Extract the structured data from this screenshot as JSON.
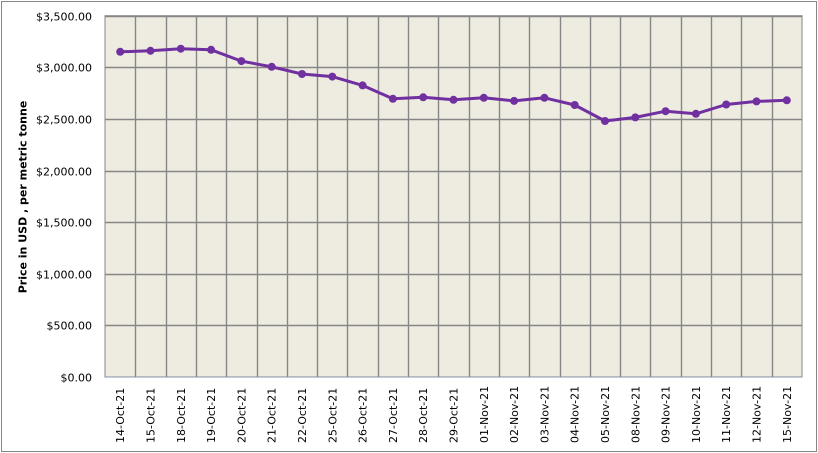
{
  "chart_data": {
    "type": "line",
    "title": "",
    "xlabel": "",
    "ylabel": "Price in USD , per metric tonne",
    "ylim": [
      0,
      3500
    ],
    "y_ticks": [
      0,
      500,
      1000,
      1500,
      2000,
      2500,
      3000,
      3500
    ],
    "y_tick_labels": [
      "$0.00",
      "$500.00",
      "$1,000.00",
      "$1,500.00",
      "$2,000.00",
      "$2,500.00",
      "$3,000.00",
      "$3,500.00"
    ],
    "grid": true,
    "legend": null,
    "categories": [
      "14-Oct-21",
      "15-Oct-21",
      "18-Oct-21",
      "19-Oct-21",
      "20-Oct-21",
      "21-Oct-21",
      "22-Oct-21",
      "25-Oct-21",
      "26-Oct-21",
      "27-Oct-21",
      "28-Oct-21",
      "29-Oct-21",
      "01-Nov-21",
      "02-Nov-21",
      "03-Nov-21",
      "04-Nov-21",
      "05-Nov-21",
      "08-Nov-21",
      "09-Nov-21",
      "10-Nov-21",
      "11-Nov-21",
      "12-Nov-21",
      "15-Nov-21"
    ],
    "series": [
      {
        "name": "Price",
        "color": "#7030A0",
        "values": [
          3150,
          3160,
          3180,
          3170,
          3060,
          3005,
          2935,
          2910,
          2825,
          2695,
          2710,
          2685,
          2705,
          2675,
          2705,
          2635,
          2480,
          2515,
          2575,
          2550,
          2640,
          2670,
          2680
        ]
      }
    ]
  },
  "style": {
    "plot_bg": "#EEECE1",
    "grid_color": "#868686",
    "axis_color": "#B9CDE5",
    "border_color": "#868686",
    "line_color": "#7030A0"
  }
}
